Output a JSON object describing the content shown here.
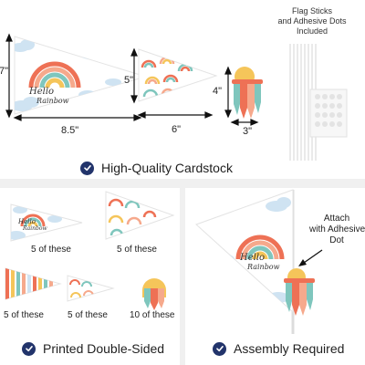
{
  "top": {
    "sticks_note_line1": "Flag Sticks",
    "sticks_note_line2": "and Adhesive Dots",
    "sticks_note_line3": "Included",
    "dimensions": {
      "large_height": "7\"",
      "large_width": "8.5\"",
      "medium_height": "5\"",
      "medium_width": "6\"",
      "small_height": "4\"",
      "small_width": "3\""
    },
    "flag_text_line1": "Hello",
    "flag_text_line2": "Rainbow",
    "caption": "High-Quality Cardstock"
  },
  "printed": {
    "items": [
      {
        "label": "5 of these"
      },
      {
        "label": "5 of these"
      },
      {
        "label": "5 of these"
      },
      {
        "label": "5 of these"
      },
      {
        "label": "10 of these"
      }
    ],
    "caption": "Printed Double-Sided"
  },
  "assembly": {
    "attach_line1": "Attach",
    "attach_line2": "with Adhesive",
    "attach_line3": "Dot",
    "flag_text_line1": "Hello",
    "flag_text_line2": "Rainbow",
    "caption": "Assembly Required"
  },
  "colors": {
    "check_badge": "#22346b",
    "rainbow_outer": "#ee7155",
    "rainbow_second": "#f6a98c",
    "rainbow_third": "#7fc6bd",
    "rainbow_inner": "#f5c55a",
    "cloud": "#cfe3f2",
    "band_gray": "#f0f0f0"
  }
}
